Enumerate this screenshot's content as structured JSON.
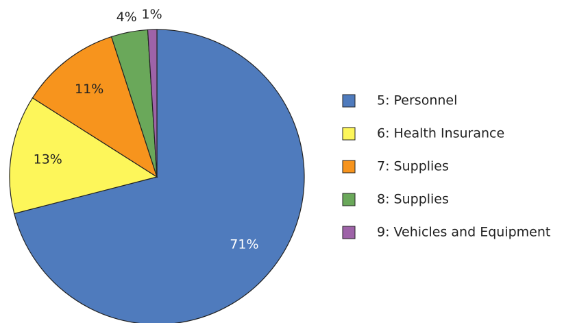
{
  "chart_data": {
    "type": "pie",
    "categories": [
      "5: Personnel",
      "6: Health Insurance",
      "7: Supplies",
      "8: Supplies",
      "9: Vehicles and Equipment"
    ],
    "values": [
      71,
      13,
      11,
      4,
      1
    ],
    "value_labels": [
      "71%",
      "13%",
      "11%",
      "4%",
      "1%"
    ],
    "colors": [
      "#4f7bbd",
      "#fdf65a",
      "#f7941d",
      "#6aa85a",
      "#9e63a8"
    ],
    "legend": "right"
  }
}
